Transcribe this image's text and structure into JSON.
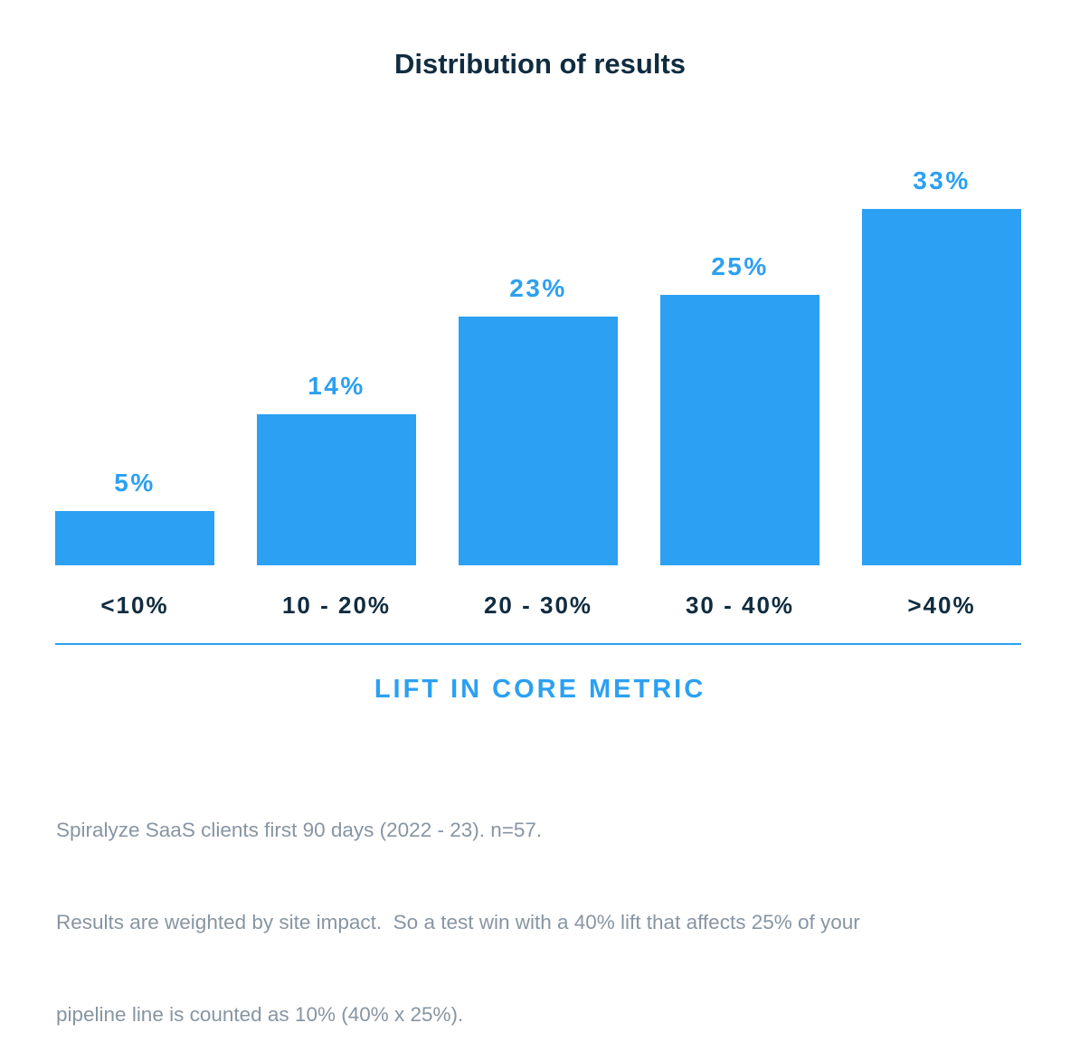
{
  "title": "Distribution of results",
  "chart_data": {
    "type": "bar",
    "title": "Distribution of results",
    "categories": [
      "<10%",
      "10 - 20%",
      "20 - 30%",
      "30 - 40%",
      ">40%"
    ],
    "values": [
      5,
      14,
      23,
      25,
      33
    ],
    "value_labels": [
      "5%",
      "14%",
      "23%",
      "25%",
      "33%"
    ],
    "xlabel": "LIFT IN CORE METRIC",
    "ylabel": "",
    "ylim": [
      0,
      35
    ],
    "grid": false,
    "legend": "none",
    "bar_color": "#2CA0F2",
    "value_label_color": "#2CA0F2",
    "category_label_color": "#102C40"
  },
  "footnote": {
    "lines": [
      "Spiralyze SaaS clients first 90 days (2022 - 23). n=57.",
      "Results are weighted by site impact.  So a test win with a 40% lift that affects 25% of your",
      "pipeline line is counted as 10% (40% x 25%)."
    ]
  },
  "colors": {
    "accent_blue": "#2CA0F2",
    "dark_navy": "#102C40",
    "footnote_gray": "#8795A2",
    "background": "#FFFFFF"
  }
}
